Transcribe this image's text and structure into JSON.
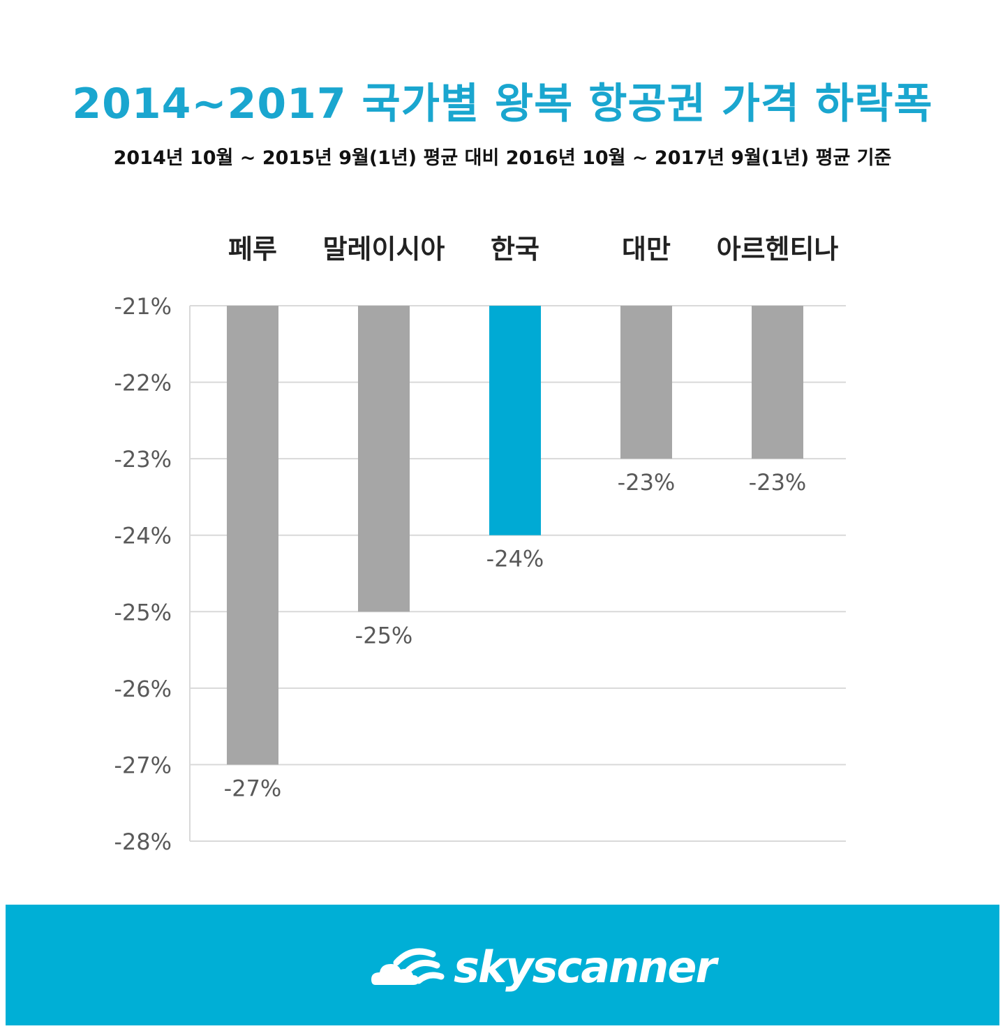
{
  "title": "2014~2017 국가별 왕복 항공권 가격 하락폭",
  "subtitle": "2014년 10월 ~ 2015년 9월(1년) 평균 대비 2016년 10월 ~ 2017년 9월(1년) 평균 기준",
  "chart_data": {
    "type": "bar",
    "categories": [
      "페루",
      "말레이시아",
      "한국",
      "대만",
      "아르헨티나"
    ],
    "values": [
      -27,
      -25,
      -24,
      -23,
      -23
    ],
    "value_labels": [
      "-27%",
      "-25%",
      "-24%",
      "-23%",
      "-23%"
    ],
    "highlight_index": 2,
    "yticks": [
      -21,
      -22,
      -23,
      -24,
      -25,
      -26,
      -27,
      -28
    ],
    "ytick_labels": [
      "-21%",
      "-22%",
      "-23%",
      "-24%",
      "-25%",
      "-26%",
      "-27%",
      "-28%"
    ],
    "ylim": [
      -28,
      -21
    ],
    "grid": true,
    "category_label_position": "top",
    "colors": {
      "default": "#a6a6a6",
      "highlight": "#00aad4"
    }
  },
  "footer": {
    "brand": "skyscanner",
    "brand_icon": "sunrise-cloud-icon",
    "background": "#00afd6"
  }
}
